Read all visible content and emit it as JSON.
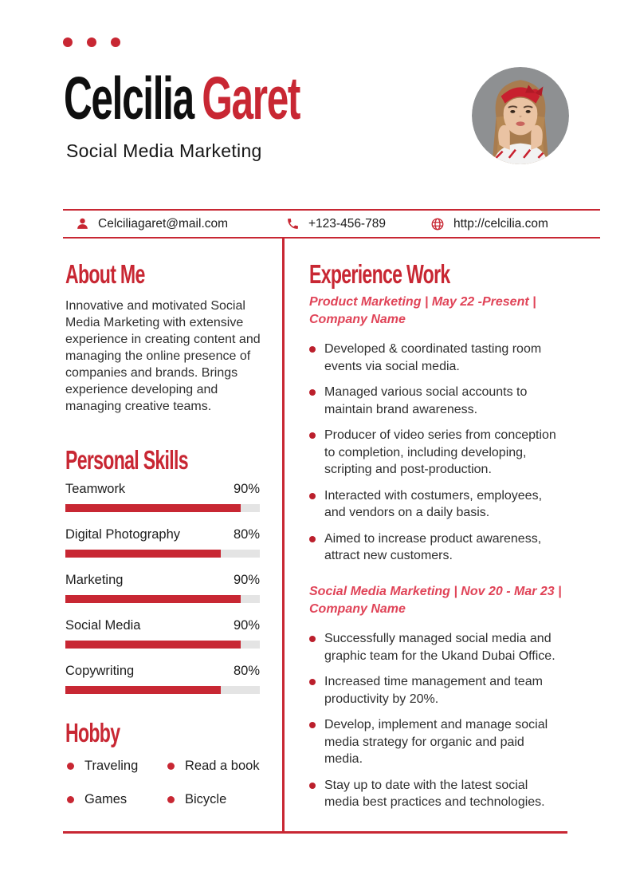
{
  "colors": {
    "accent": "#c82733",
    "job_title_red": "#e04458",
    "bar_track": "#e4e4e4",
    "photo_background": "#8e9092"
  },
  "header": {
    "name_first": "Celcilia",
    "name_last": "Garet",
    "subtitle": "Social Media Marketing",
    "photo_icon": "profile-photo"
  },
  "contact": {
    "email_icon": "person-icon",
    "email": "Celciliagaret@mail.com",
    "phone_icon": "phone-icon",
    "phone": "+123-456-789",
    "website_icon": "globe-icon",
    "website": "http://celcilia.com"
  },
  "about": {
    "heading": "About Me",
    "text": "Innovative and motivated Social Media Marketing with extensive experience in creating content and managing the online presence of companies and brands. Brings experience developing and managing creative teams."
  },
  "skills": {
    "heading": "Personal Skills",
    "items": [
      {
        "label": "Teamwork",
        "value": "90%",
        "percent": 90
      },
      {
        "label": "Digital Photography",
        "value": "80%",
        "percent": 80
      },
      {
        "label": "Marketing",
        "value": "90%",
        "percent": 90
      },
      {
        "label": "Social Media",
        "value": "90%",
        "percent": 90
      },
      {
        "label": "Copywriting",
        "value": "80%",
        "percent": 80
      }
    ]
  },
  "hobby": {
    "heading": "Hobby",
    "items": [
      "Traveling",
      "Read a book",
      "Games",
      "Bicycle"
    ]
  },
  "experience": {
    "heading": "Experience Work",
    "jobs": [
      {
        "title": "Product Marketing | May 22 -Present | Company Name",
        "bullets": [
          "Developed & coordinated tasting room events via social media.",
          "Managed various social accounts to maintain brand awareness.",
          "Producer of video series from conception to completion, including developing, scripting and post-production.",
          "Interacted with costumers, employees, and vendors on a daily basis.",
          "Aimed to increase product awareness, attract new customers."
        ]
      },
      {
        "title": "Social Media Marketing | Nov 20 - Mar 23 | Company Name",
        "bullets": [
          "Successfully managed social media and graphic team for the Ukand Dubai Office.",
          "Increased time management and team productivity by 20%.",
          "Develop, implement and manage social media strategy for organic and paid media.",
          "Stay up to date with the latest social media best practices and technologies."
        ]
      }
    ]
  }
}
